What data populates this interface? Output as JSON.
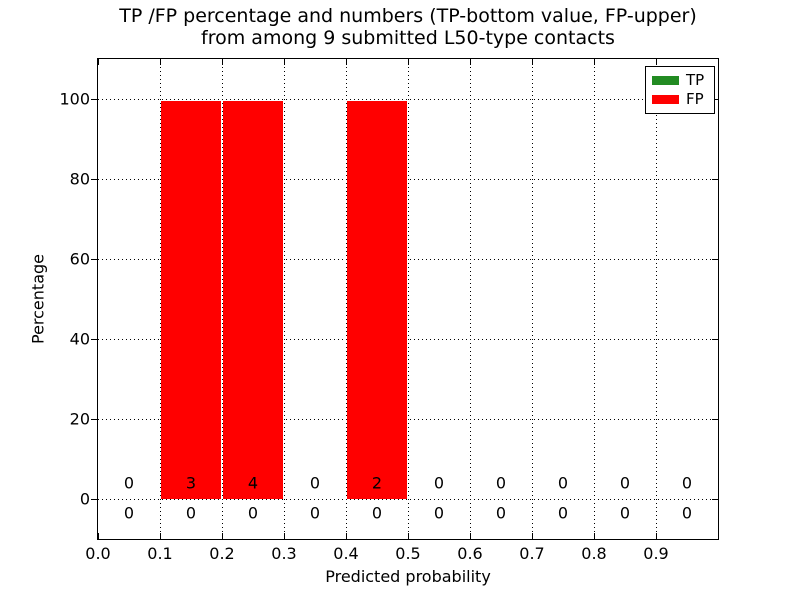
{
  "title": {
    "line1": "TP /FP percentage and numbers (TP-bottom value, FP-upper)",
    "line2": "from among 9 submitted L50-type contacts"
  },
  "chart_data": {
    "type": "bar",
    "title": "TP /FP percentage and numbers (TP-bottom value, FP-upper)\nfrom among 9 submitted L50-type contacts",
    "xlabel": "Predicted probability",
    "ylabel": "Percentage",
    "xlim": [
      0.0,
      1.0
    ],
    "ylim": [
      -10,
      110
    ],
    "xticks": [
      0.0,
      0.1,
      0.2,
      0.3,
      0.4,
      0.5,
      0.6,
      0.7,
      0.8,
      0.9
    ],
    "xtick_labels": [
      "0.0",
      "0.1",
      "0.2",
      "0.3",
      "0.4",
      "0.5",
      "0.6",
      "0.7",
      "0.8",
      "0.9"
    ],
    "yticks": [
      0,
      20,
      40,
      60,
      80,
      100
    ],
    "ytick_labels": [
      "0",
      "20",
      "40",
      "60",
      "80",
      "100"
    ],
    "grid": "dotted",
    "bin_width": 0.1,
    "bin_starts": [
      0.0,
      0.1,
      0.2,
      0.3,
      0.4,
      0.5,
      0.6,
      0.7,
      0.8,
      0.9
    ],
    "series": [
      {
        "name": "TP",
        "color": "#228b22",
        "percentages": [
          0,
          0,
          0,
          0,
          0,
          0,
          0,
          0,
          0,
          0
        ],
        "counts": [
          0,
          0,
          0,
          0,
          0,
          0,
          0,
          0,
          0,
          0
        ]
      },
      {
        "name": "FP",
        "color": "#ff0000",
        "percentages": [
          0,
          100,
          100,
          0,
          100,
          0,
          0,
          0,
          0,
          0
        ],
        "counts": [
          0,
          3,
          4,
          0,
          2,
          0,
          0,
          0,
          0,
          0
        ]
      }
    ],
    "legend": {
      "position": "upper right",
      "entries": [
        "TP",
        "FP"
      ]
    }
  }
}
